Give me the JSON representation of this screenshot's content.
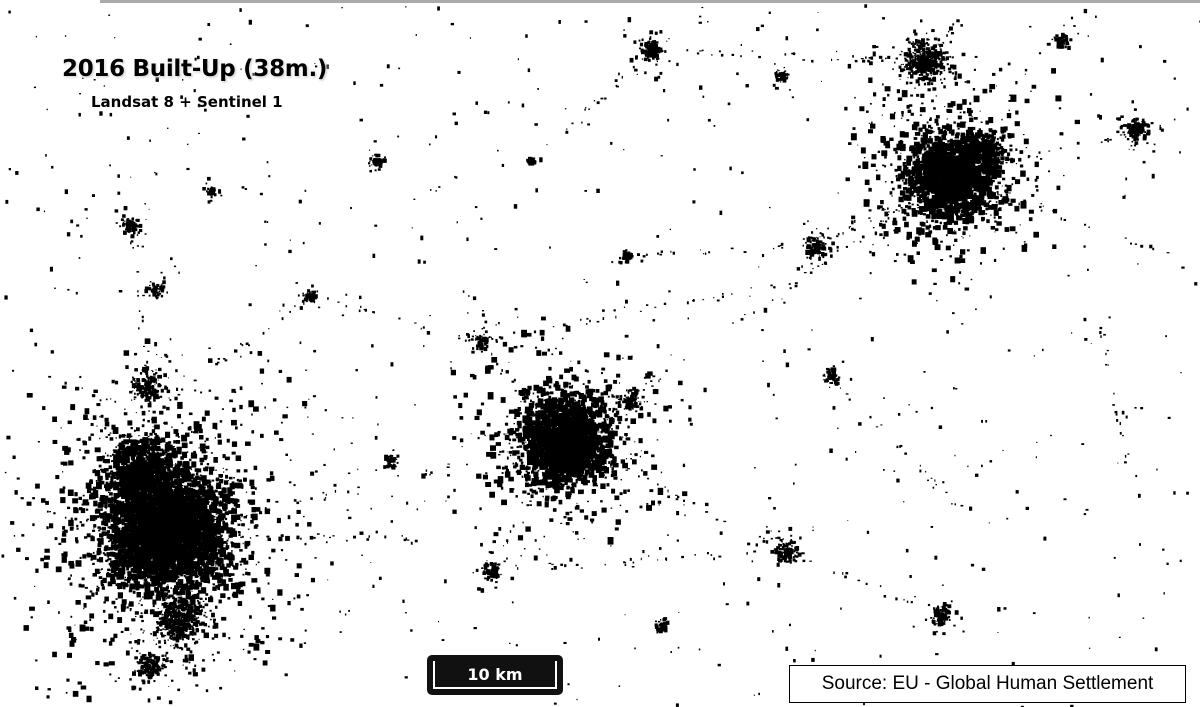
{
  "header": {
    "title": "2016 Built-Up (38m.)",
    "subtitle": "Landsat 8 + Sentinel 1"
  },
  "scale_bar": {
    "label": "10 km"
  },
  "source": {
    "label": "Source: EU - Global Human Settlement"
  }
}
